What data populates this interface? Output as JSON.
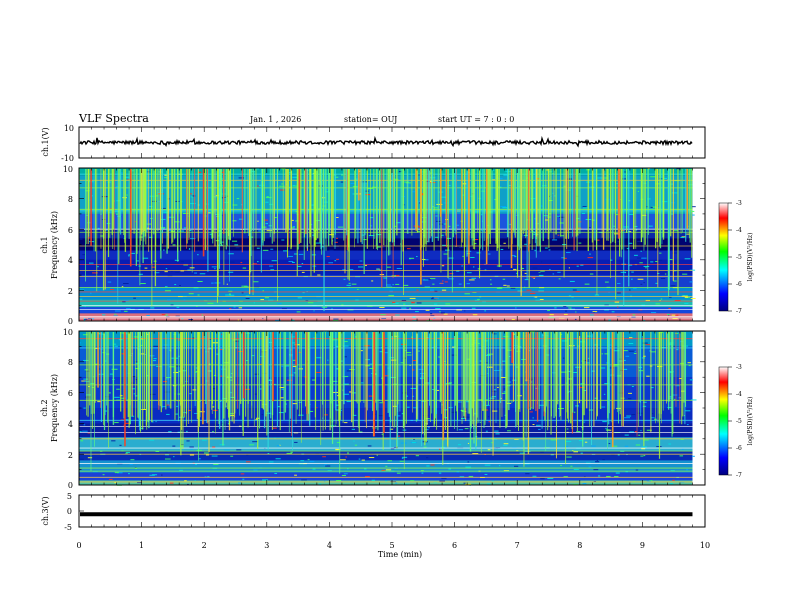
{
  "header": {
    "title": "VLF Spectra",
    "date": "Jan. 1 , 2026",
    "station": "station= OUJ",
    "start_time": "start  UT =   7 : 0  : 0"
  },
  "chart_data": [
    {
      "type": "line",
      "id": "ch1-waveform",
      "ylabel": "ch.1(V)",
      "ylim": [
        -10,
        10
      ],
      "yticks": [
        "10",
        "-10"
      ],
      "xlim": [
        0,
        10
      ],
      "baseline": 0
    },
    {
      "type": "heatmap",
      "id": "ch1-spectrogram",
      "ylabel": "ch.1 Frequency (kHz)",
      "ylabel_channel": "ch.1",
      "ylabel_quantity": "Frequency (kHz)",
      "ylim": [
        0,
        10
      ],
      "yticks": [
        "0",
        "2",
        "4",
        "6",
        "8",
        "10"
      ],
      "xlim": [
        0,
        10
      ],
      "data_end_min": 9.8,
      "colorbar": {
        "label": "log(PSD)(V²/Hz)",
        "ticks": [
          "-3",
          "-4",
          "-5",
          "-6",
          "-7"
        ],
        "range": [
          -7,
          -3
        ],
        "colors": [
          "#00007f",
          "#0000ff",
          "#00ffff",
          "#00ff00",
          "#ffff00",
          "#ff0000",
          "#ffffff"
        ]
      }
    },
    {
      "type": "heatmap",
      "id": "ch2-spectrogram",
      "ylabel": "ch.2 Frequency (kHz)",
      "ylabel_channel": "ch.2",
      "ylabel_quantity": "Frequency (kHz)",
      "ylim": [
        0,
        10
      ],
      "yticks": [
        "0",
        "2",
        "4",
        "6",
        "8",
        "10"
      ],
      "xlim": [
        0,
        10
      ],
      "data_end_min": 9.8,
      "colorbar": {
        "label": "log(PSD)(V²/Hz)",
        "ticks": [
          "-3",
          "-4",
          "-5",
          "-6",
          "-7"
        ],
        "range": [
          -7,
          -3
        ],
        "colors": [
          "#00007f",
          "#0000ff",
          "#00ffff",
          "#00ff00",
          "#ffff00",
          "#ff0000",
          "#ffffff"
        ]
      }
    },
    {
      "type": "line",
      "id": "ch3-waveform",
      "ylabel": "ch.3(V)",
      "ylim": [
        -5,
        5
      ],
      "yticks": [
        "5",
        "0",
        "-5"
      ],
      "xlim": [
        0,
        10
      ],
      "baseline": -1
    }
  ],
  "x_axis": {
    "label": "Time  (min)",
    "ticks": [
      "0",
      "1",
      "2",
      "3",
      "4",
      "5",
      "6",
      "7",
      "8",
      "9",
      "10"
    ]
  }
}
